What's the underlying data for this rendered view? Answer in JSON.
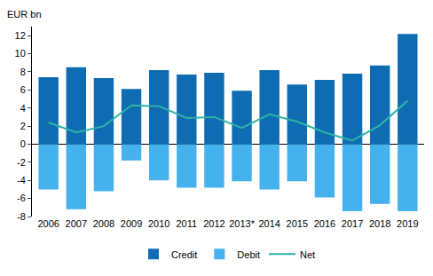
{
  "chart_data": {
    "type": "bar",
    "ylabel": "EUR bn",
    "categories": [
      "2006",
      "2007",
      "2008",
      "2009",
      "2010",
      "2011",
      "2012",
      "2013*",
      "2014",
      "2015",
      "2016",
      "2017",
      "2018",
      "2019"
    ],
    "series": [
      {
        "name": "Credit",
        "type": "bar",
        "color": "#0f6cb2",
        "values": [
          7.4,
          8.5,
          7.3,
          6.1,
          8.2,
          7.7,
          7.9,
          5.9,
          8.2,
          6.6,
          7.1,
          7.8,
          8.7,
          12.2
        ]
      },
      {
        "name": "Debit",
        "type": "bar",
        "color": "#45b2ee",
        "values": [
          -5.0,
          -7.2,
          -5.2,
          -1.8,
          -4.0,
          -4.8,
          -4.8,
          -4.1,
          -5.0,
          -4.1,
          -5.9,
          -7.4,
          -6.6,
          -7.4
        ]
      },
      {
        "name": "Net",
        "type": "line",
        "color": "#2fb3a6",
        "values": [
          2.4,
          1.3,
          2.0,
          4.3,
          4.2,
          2.9,
          3.0,
          1.8,
          3.3,
          2.5,
          1.3,
          0.4,
          2.1,
          4.8
        ]
      }
    ],
    "ylim": [
      -8,
      13
    ],
    "yticks": [
      -8,
      -6,
      -4,
      -2,
      0,
      2,
      4,
      6,
      8,
      10,
      12
    ],
    "stacked": true,
    "grid": false,
    "legend": "bottom"
  }
}
